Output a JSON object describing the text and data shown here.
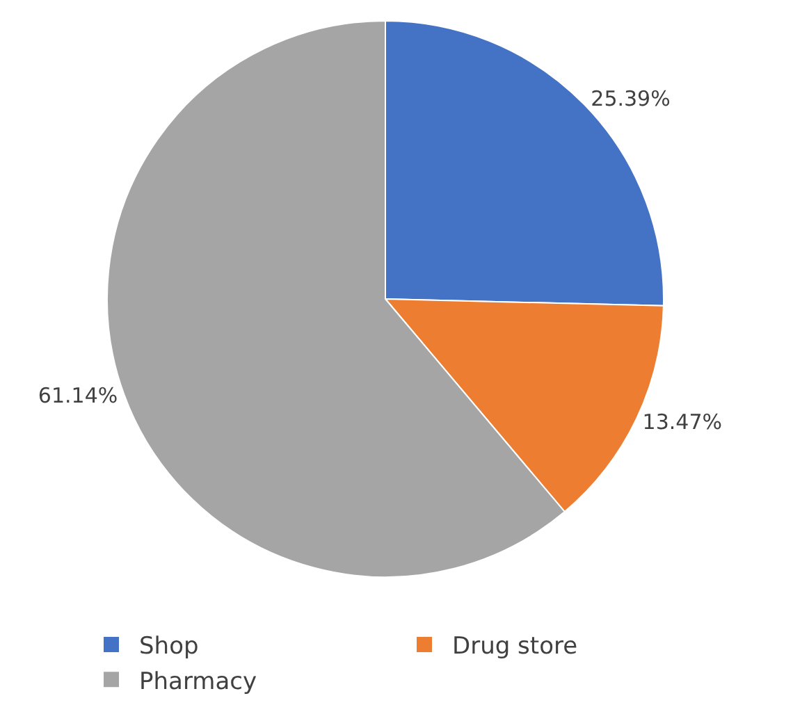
{
  "chart_data": {
    "type": "pie",
    "categories": [
      "Shop",
      "Drug store",
      "Pharmacy"
    ],
    "values": [
      25.39,
      13.47,
      61.14
    ],
    "value_labels": [
      "25.39%",
      "13.47%",
      "61.14%"
    ],
    "colors": [
      "#4472c4",
      "#ed7d31",
      "#a5a5a5"
    ],
    "legend": "bottom"
  }
}
